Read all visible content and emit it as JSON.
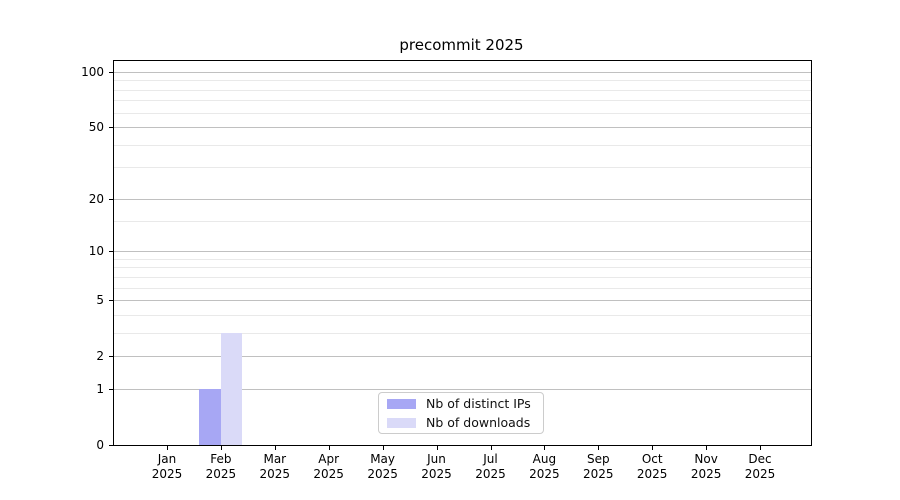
{
  "chart_data": {
    "type": "bar",
    "title": "precommit 2025",
    "categories": [
      "Jan",
      "Feb",
      "Mar",
      "Apr",
      "May",
      "Jun",
      "Jul",
      "Aug",
      "Sep",
      "Oct",
      "Nov",
      "Dec"
    ],
    "category_year": "2025",
    "series": [
      {
        "name": "Nb of distinct IPs",
        "color": "#a7a7f4",
        "values": [
          0,
          1,
          0,
          0,
          0,
          0,
          0,
          0,
          0,
          0,
          0,
          0
        ]
      },
      {
        "name": "Nb of downloads",
        "color": "#dadaf8",
        "values": [
          0,
          3,
          0,
          0,
          0,
          0,
          0,
          0,
          0,
          0,
          0,
          0
        ]
      }
    ],
    "xlabel": "",
    "ylabel": "",
    "yscale": "log1p",
    "ylim": [
      0,
      114.5
    ],
    "y_major_ticks": [
      0,
      1,
      2,
      5,
      10,
      20,
      50,
      100
    ],
    "y_minor_ticks": [
      3,
      4,
      6,
      7,
      8,
      9,
      15,
      30,
      40,
      60,
      70,
      80,
      90
    ],
    "grid": true,
    "legend_position": "lower center",
    "colors": {
      "major_grid": "#c0c0c0",
      "minor_grid": "#e9e9e9",
      "axis": "#000000",
      "text": "#000000"
    }
  }
}
